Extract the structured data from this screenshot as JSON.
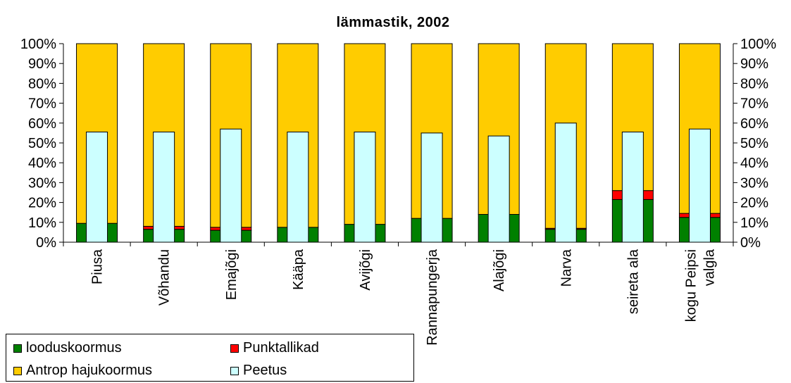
{
  "chart_data": {
    "type": "bar",
    "stacked": true,
    "title": "lämmastik, 2002",
    "categories": [
      "Piusa",
      "Võhandu",
      "Emajõgi",
      "Kääpa",
      "Avijõgi",
      "Rannapungerja",
      "Alajõgi",
      "Narva",
      "seireta ala",
      "kogu Peipsi valgla"
    ],
    "category_lines": [
      [
        "Piusa"
      ],
      [
        "Võhandu"
      ],
      [
        "Emajõgi"
      ],
      [
        "Kääpa"
      ],
      [
        "Avijõgi"
      ],
      [
        "Rannapungerja"
      ],
      [
        "Alajõgi"
      ],
      [
        "Narva"
      ],
      [
        "seireta ala"
      ],
      [
        "kogu Peipsi",
        "valgla"
      ]
    ],
    "ylim": [
      0,
      100
    ],
    "yticks": [
      "0%",
      "10%",
      "20%",
      "30%",
      "40%",
      "50%",
      "60%",
      "70%",
      "80%",
      "90%",
      "100%"
    ],
    "y2ticks": [
      "0%",
      "10%",
      "20%",
      "30%",
      "40%",
      "50%",
      "60%",
      "70%",
      "80%",
      "90%",
      "100%"
    ],
    "stacked_series": [
      {
        "name": "looduskoormus",
        "color": "#008000",
        "values": [
          9.5,
          6.5,
          6,
          7.5,
          9,
          12,
          14,
          6.5,
          21.5,
          12.5
        ]
      },
      {
        "name": "Punktallikad",
        "color": "#ff0000",
        "values": [
          0,
          1.5,
          1.5,
          0,
          0,
          0,
          0,
          0.5,
          4.5,
          2
        ]
      },
      {
        "name": "Antrop hajukoormus",
        "color": "#ffcc00",
        "values": [
          90.5,
          92,
          92.5,
          92.5,
          91,
          88,
          86,
          93,
          74,
          85.5
        ]
      }
    ],
    "overlay_series": {
      "name": "Peetus",
      "color": "#ccffff",
      "values": [
        55.5,
        55.5,
        57,
        55.5,
        55.5,
        55,
        53.5,
        60,
        55.5,
        57
      ]
    },
    "legend": {
      "position": "bottom-left",
      "items": [
        {
          "label": "looduskoormus",
          "color": "#008000"
        },
        {
          "label": "Punktallikad",
          "color": "#ff0000"
        },
        {
          "label": "Antrop hajukoormus",
          "color": "#ffcc00"
        },
        {
          "label": "Peetus",
          "color": "#ccffff"
        }
      ]
    },
    "grid": false
  }
}
